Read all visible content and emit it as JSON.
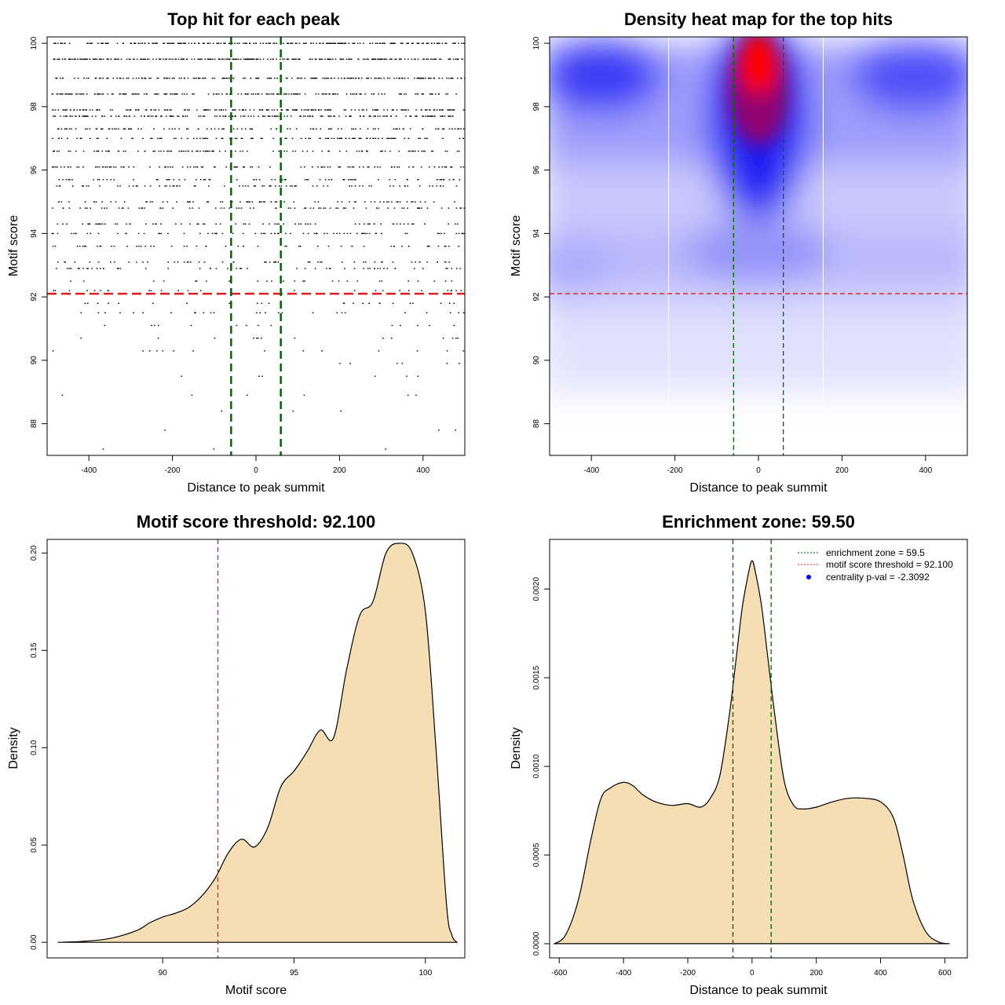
{
  "chart_data": [
    {
      "type": "scatter",
      "title": "Top hit for each peak",
      "xlabel": "Distance to peak summit",
      "ylabel": "Motif score",
      "xlim": [
        -500,
        500
      ],
      "ylim": [
        87.0,
        100.2
      ],
      "xticks": [
        -400,
        -200,
        0,
        200,
        400
      ],
      "yticks": [
        88,
        90,
        92,
        94,
        96,
        98,
        100
      ],
      "threshold_y": 92.1,
      "enrichment_zone": [
        -59.5,
        59.5
      ],
      "threshold_color": "#e41a1c",
      "zone_color": "#006400",
      "point_color": "#000000",
      "score_bands": [
        100.0,
        99.5,
        98.9,
        98.4,
        97.9,
        97.7,
        97.3,
        97.0,
        96.6,
        96.1,
        95.7,
        95.5,
        95.0,
        94.8,
        94.3,
        94.0,
        93.6,
        93.1,
        92.9,
        92.5,
        92.2,
        91.8,
        91.5,
        91.1,
        90.7,
        90.3,
        89.9,
        89.5,
        88.9,
        88.4,
        87.8,
        87.2
      ]
    },
    {
      "type": "heatmap",
      "title": "Density heat map for the top hits",
      "xlabel": "Distance to peak summit",
      "ylabel": "Motif score",
      "xlim": [
        -500,
        500
      ],
      "ylim": [
        87.0,
        100.2
      ],
      "xticks": [
        -400,
        -200,
        0,
        200,
        400
      ],
      "yticks": [
        88,
        90,
        92,
        94,
        96,
        98,
        100
      ],
      "threshold_y": 92.1,
      "enrichment_zone": [
        -59.5,
        59.5
      ],
      "gridlines_x": [
        -215,
        155
      ],
      "colorscale": [
        "#ffffff",
        "#0000ff",
        "#ff0000"
      ]
    },
    {
      "type": "area",
      "title": "Motif score threshold: 92.100",
      "xlabel": "Motif score",
      "ylabel": "Density",
      "xlim": [
        85.6,
        101.5
      ],
      "ylim": [
        -0.008,
        0.207
      ],
      "xticks": [
        90,
        95,
        100
      ],
      "yticks": [
        0.0,
        0.05,
        0.1,
        0.15,
        0.2
      ],
      "ytick_labels": [
        "0.00",
        "0.05",
        "0.10",
        "0.15",
        "0.20"
      ],
      "threshold_x": 92.1,
      "fill_color": "#f5deb3",
      "threshold_color": "#e41a1c",
      "x": [
        86.0,
        87.0,
        88.0,
        89.0,
        89.5,
        90.0,
        90.5,
        91.0,
        91.5,
        92.0,
        92.5,
        93.0,
        93.5,
        94.0,
        94.5,
        95.0,
        95.5,
        96.0,
        96.5,
        97.0,
        97.5,
        98.0,
        98.5,
        99.0,
        99.5,
        100.0,
        100.4,
        100.8,
        101.0,
        101.2
      ],
      "y": [
        0.0,
        0.0005,
        0.002,
        0.006,
        0.01,
        0.013,
        0.015,
        0.018,
        0.024,
        0.033,
        0.046,
        0.053,
        0.049,
        0.059,
        0.08,
        0.088,
        0.098,
        0.109,
        0.105,
        0.14,
        0.168,
        0.175,
        0.2,
        0.205,
        0.2,
        0.17,
        0.1,
        0.02,
        0.004,
        0.0
      ]
    },
    {
      "type": "area",
      "title": "Enrichment zone: 59.50",
      "xlabel": "Distance to peak summit",
      "ylabel": "Density",
      "xlim": [
        -630,
        670
      ],
      "ylim": [
        -8e-05,
        0.00228
      ],
      "xticks": [
        -600,
        -400,
        -200,
        0,
        200,
        400,
        600
      ],
      "yticks": [
        0.0,
        0.0005,
        0.001,
        0.0015,
        0.002
      ],
      "ytick_labels": [
        "0.0000",
        "0.0005",
        "0.0010",
        "0.0015",
        "0.0020"
      ],
      "enrichment_zone": [
        -59.5,
        59.5
      ],
      "fill_color": "#f5deb3",
      "zone_color": "#006400",
      "x": [
        -615,
        -580,
        -540,
        -500,
        -470,
        -440,
        -400,
        -370,
        -340,
        -300,
        -250,
        -200,
        -160,
        -130,
        -100,
        -70,
        -50,
        -30,
        -10,
        0,
        10,
        30,
        50,
        70,
        100,
        130,
        160,
        200,
        250,
        300,
        350,
        400,
        440,
        470,
        500,
        540,
        580,
        615
      ],
      "y": [
        0.0,
        5e-05,
        0.00025,
        0.0006,
        0.00082,
        0.00088,
        0.00091,
        0.00089,
        0.00084,
        0.0008,
        0.00078,
        0.00079,
        0.00077,
        0.00082,
        0.00095,
        0.0013,
        0.0016,
        0.0019,
        0.0021,
        0.00216,
        0.0021,
        0.0019,
        0.0016,
        0.0013,
        0.00092,
        0.00078,
        0.00076,
        0.00077,
        0.0008,
        0.00082,
        0.00082,
        0.0008,
        0.00071,
        0.0005,
        0.00025,
        7e-05,
        1e-05,
        0.0
      ]
    }
  ],
  "legend": [
    {
      "label": "enrichment zone = 59.5",
      "style": "line",
      "color": "#006400"
    },
    {
      "label": "motif score threshold = 92.100",
      "style": "line",
      "color": "#e41a1c"
    },
    {
      "label": "centrality p-val = -2.3092",
      "style": "point",
      "color": "#0000ff"
    }
  ]
}
